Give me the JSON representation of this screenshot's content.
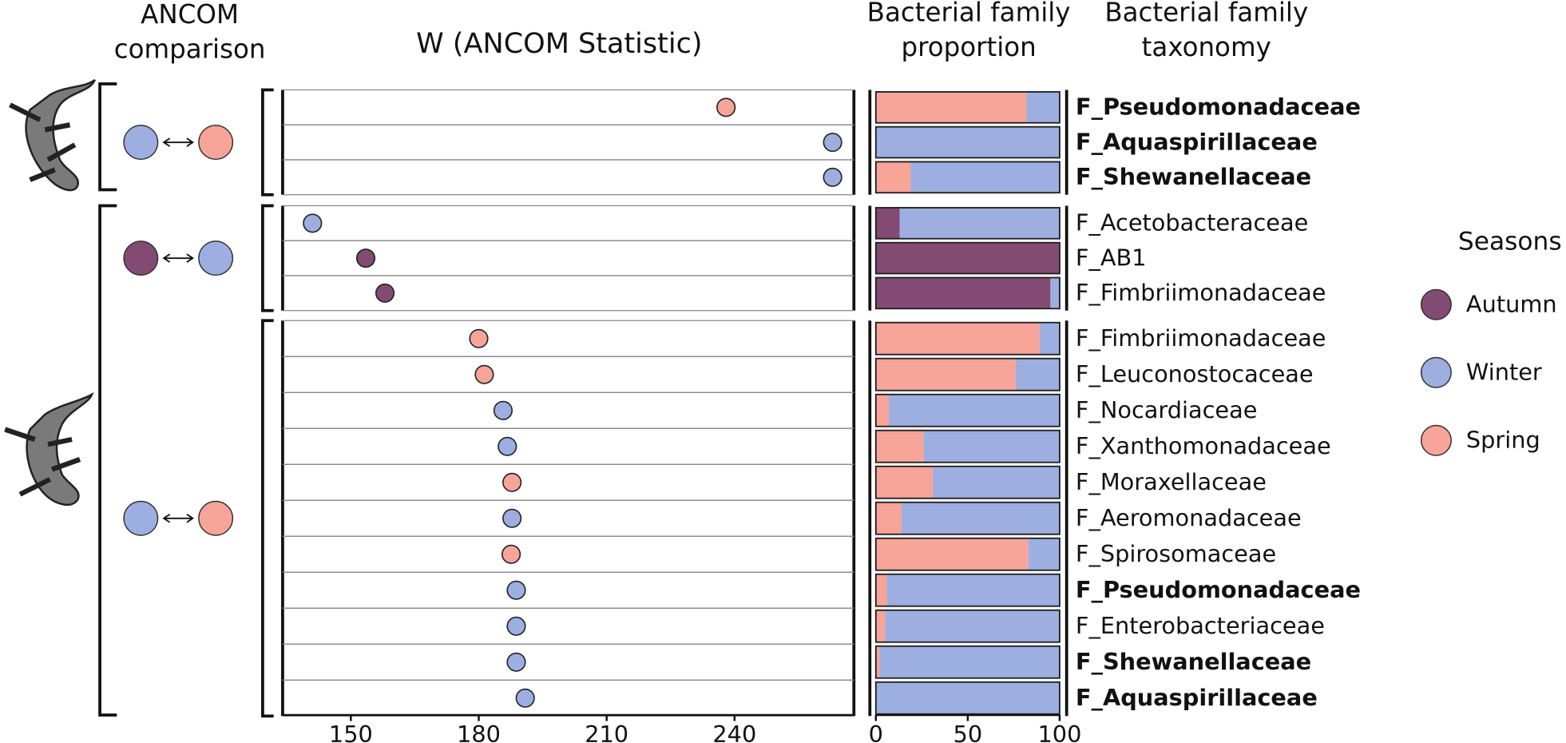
{
  "headers": {
    "comparison": [
      "ANCOM",
      "comparison"
    ],
    "proportion": [
      "Bacterial family",
      "proportion"
    ],
    "taxonomy": [
      "Bacterial family",
      "taxonomy"
    ]
  },
  "groups": [
    {
      "size": 3,
      "from": "#9daee0",
      "to": "#f7a499"
    },
    {
      "size": 3,
      "from": "#834a73",
      "to": "#9daee0"
    },
    {
      "size": 11,
      "from": "#9daee0",
      "to": "#f7a499"
    }
  ],
  "chart_data": [
    {
      "type": "dot",
      "title": "W (ANCOM Statistic)",
      "categories": [
        "F_Pseudomonadaceae",
        "F_Aquaspirillaceae",
        "F_Shewanellaceae",
        "F_Acetobacteraceae",
        "F_AB1",
        "F_Fimbriimonadaceae",
        "F_Fimbriimonadaceae",
        "F_Leuconostocaceae",
        "F_Nocardiaceae",
        "F_Xanthomonadaceae",
        "F_Moraxellaceae",
        "F_Aeromonadaceae",
        "F_Spirosomaceae",
        "F_Pseudomonadaceae",
        "F_Enterobacteriaceae",
        "F_Shewanellaceae",
        "F_Aquaspirillaceae"
      ],
      "bold": [
        true,
        true,
        true,
        false,
        false,
        false,
        false,
        false,
        false,
        false,
        false,
        false,
        false,
        true,
        false,
        true,
        true
      ],
      "values": [
        238,
        263,
        263,
        141,
        153.5,
        158,
        180,
        181.3,
        185.7,
        186.7,
        187.8,
        187.8,
        187.6,
        188.8,
        188.8,
        188.8,
        190.9
      ],
      "colors": [
        "#f7a499",
        "#9daee0",
        "#9daee0",
        "#9daee0",
        "#834a73",
        "#834a73",
        "#f7a499",
        "#f7a499",
        "#9daee0",
        "#9daee0",
        "#f7a499",
        "#9daee0",
        "#f7a499",
        "#9daee0",
        "#9daee0",
        "#9daee0",
        "#9daee0"
      ],
      "xlim": [
        134,
        268
      ],
      "xticks": [
        150,
        180,
        210,
        240
      ]
    },
    {
      "type": "stacked-bar",
      "legend_title": "Seasons",
      "series": [
        {
          "name": "Autumn",
          "color": "#834a73",
          "values": [
            0,
            0,
            0,
            13,
            100,
            95,
            0,
            0,
            0,
            0,
            0,
            0,
            0,
            0,
            0,
            0,
            0
          ]
        },
        {
          "name": "Winter",
          "color": "#9daee0",
          "values": [
            18,
            100,
            81,
            87,
            0,
            5,
            11,
            24,
            93,
            74,
            69,
            86,
            17,
            94,
            95,
            98,
            100
          ]
        },
        {
          "name": "Spring",
          "color": "#f7a499",
          "values": [
            82,
            0,
            19,
            0,
            0,
            0,
            89,
            76,
            7,
            26,
            31,
            14,
            83,
            6,
            5,
            2,
            0
          ]
        }
      ],
      "order": [
        0,
        2,
        1
      ],
      "xlim": [
        0,
        100
      ],
      "xticks": [
        0,
        50,
        100
      ]
    }
  ]
}
